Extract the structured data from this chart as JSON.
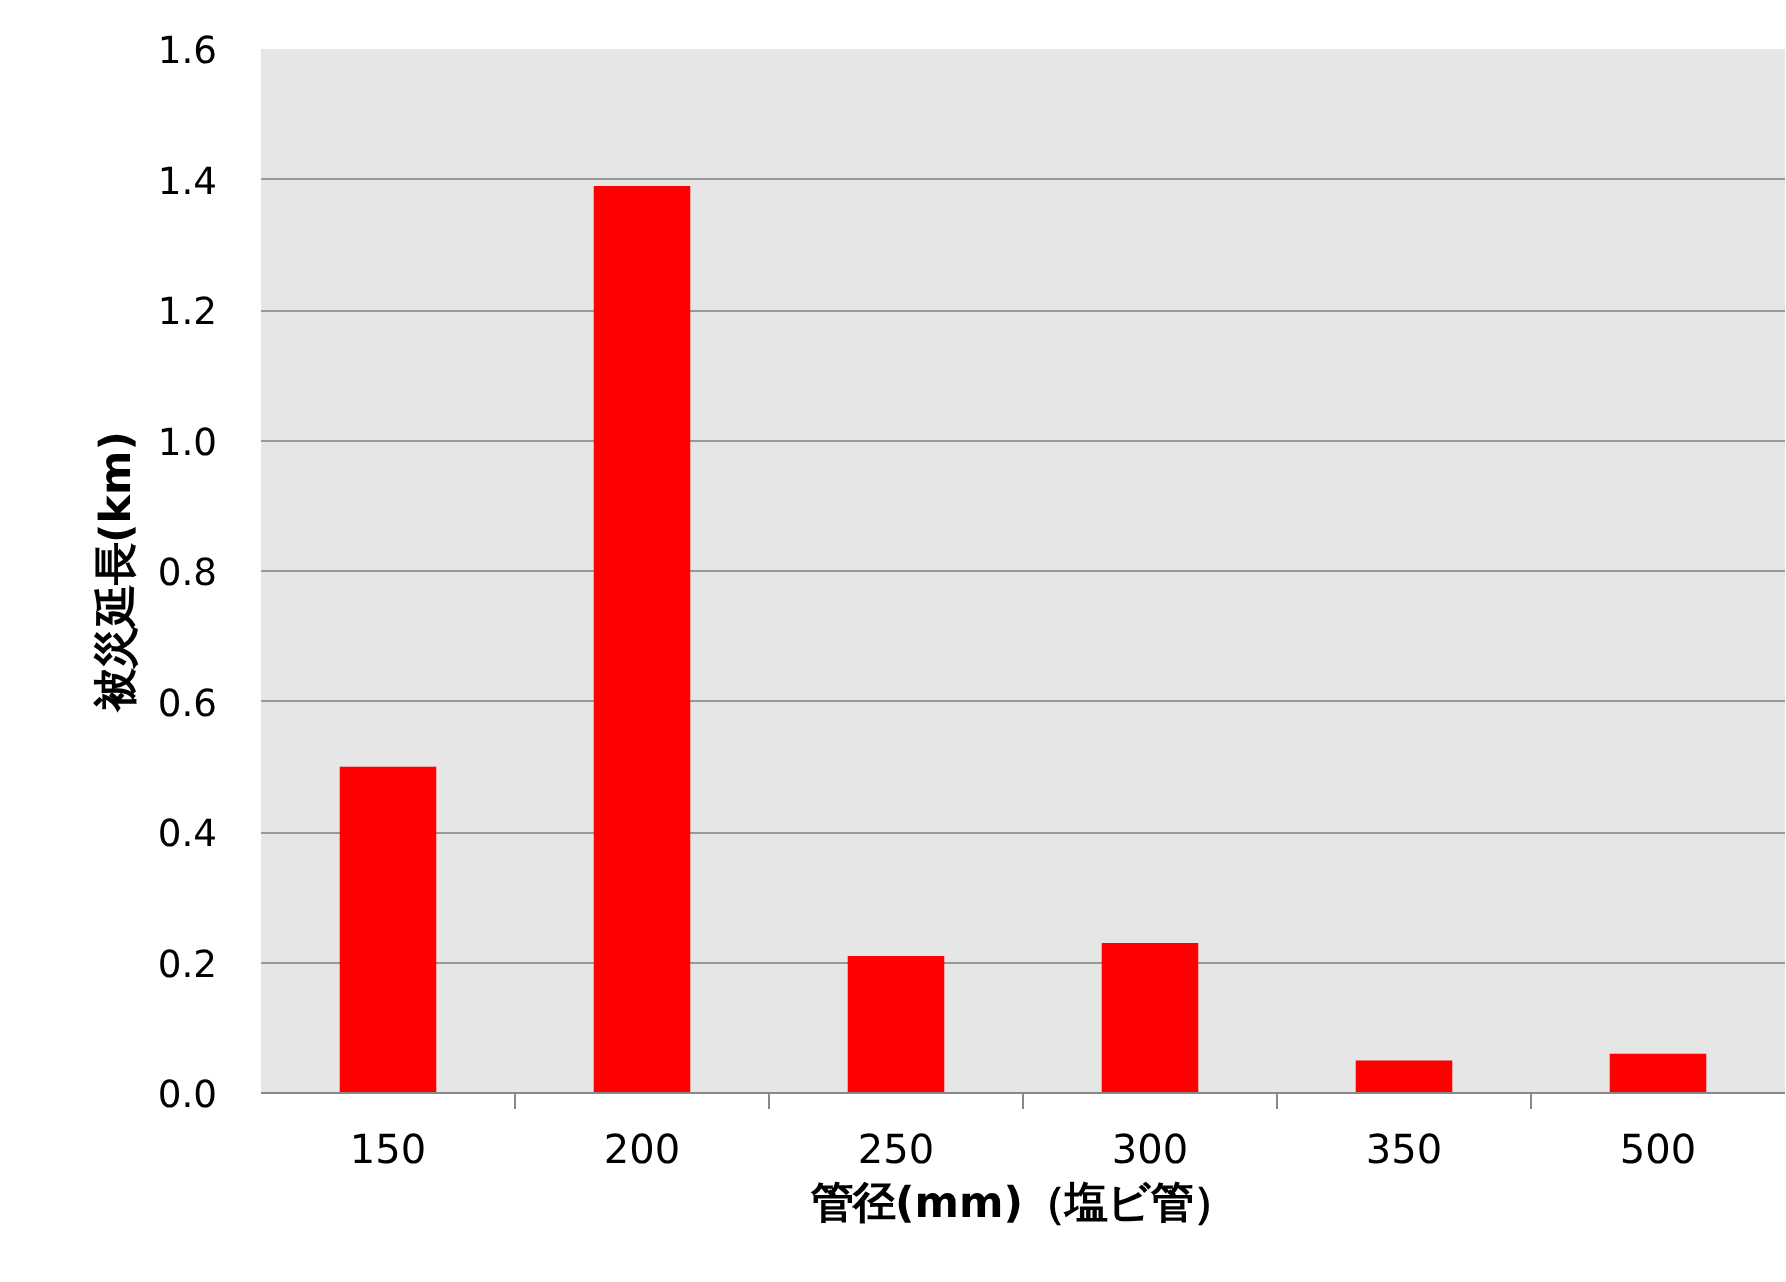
{
  "chart_data": {
    "type": "bar",
    "xlabel": "管径(mm)（塩ビ管）",
    "ylabel": "被災延長(km)",
    "categories": [
      "150",
      "200",
      "250",
      "300",
      "350",
      "500"
    ],
    "values": [
      0.5,
      1.39,
      0.21,
      0.23,
      0.05,
      0.06
    ],
    "color": "#ff0000",
    "ylim": [
      0,
      1.6
    ],
    "yticks": [
      {
        "value": 0,
        "label": "0.0"
      },
      {
        "value": 0.2,
        "label": "0.2"
      },
      {
        "value": 0.4,
        "label": "0.4"
      },
      {
        "value": 0.6,
        "label": "0.6"
      },
      {
        "value": 0.8,
        "label": "0.8"
      },
      {
        "value": 1.0,
        "label": "1.0"
      },
      {
        "value": 1.2,
        "label": "1.2"
      },
      {
        "value": 1.4,
        "label": "1.4"
      },
      {
        "value": 1.6,
        "label": "1.6"
      }
    ],
    "grid": "y"
  }
}
